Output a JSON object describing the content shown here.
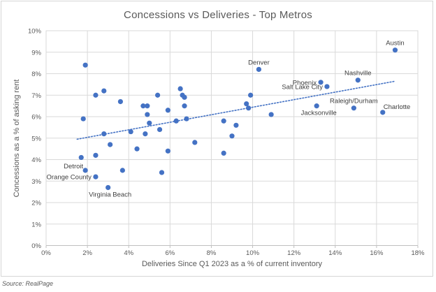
{
  "source_note": "Source: RealPage",
  "colors": {
    "marker": "#4472C4",
    "trendline": "#4472C4",
    "gridline": "#D9D9D9",
    "axis_line": "#BFBFBF",
    "title_text": "#595959",
    "label_text": "#404040"
  },
  "chart_data": {
    "type": "scatter",
    "title": "Concessions vs Deliveries - Top Metros",
    "xlabel": "Deliveries Since Q1 2023 as a % of current inventory",
    "ylabel": "Concessions as a % of asking rent",
    "xlim": [
      0,
      18
    ],
    "ylim": [
      0,
      10
    ],
    "grid": true,
    "legend": false,
    "x_ticks": [
      {
        "v": 0,
        "label": "0%"
      },
      {
        "v": 2,
        "label": "2%"
      },
      {
        "v": 4,
        "label": "4%"
      },
      {
        "v": 6,
        "label": "6%"
      },
      {
        "v": 8,
        "label": "8%"
      },
      {
        "v": 10,
        "label": "10%"
      },
      {
        "v": 12,
        "label": "12%"
      },
      {
        "v": 14,
        "label": "14%"
      },
      {
        "v": 16,
        "label": "16%"
      },
      {
        "v": 18,
        "label": "18%"
      }
    ],
    "y_ticks": [
      {
        "v": 0,
        "label": "0%"
      },
      {
        "v": 1,
        "label": "1%"
      },
      {
        "v": 2,
        "label": "2%"
      },
      {
        "v": 3,
        "label": "3%"
      },
      {
        "v": 4,
        "label": "4%"
      },
      {
        "v": 5,
        "label": "5%"
      },
      {
        "v": 6,
        "label": "6%"
      },
      {
        "v": 7,
        "label": "7%"
      },
      {
        "v": 8,
        "label": "8%"
      },
      {
        "v": 9,
        "label": "9%"
      },
      {
        "v": 10,
        "label": "10%"
      }
    ],
    "trendline": {
      "x1": 1.5,
      "y1": 4.95,
      "x2": 16.9,
      "y2": 7.65,
      "style": "dotted"
    },
    "points": [
      {
        "x": 1.9,
        "y": 8.4
      },
      {
        "x": 1.8,
        "y": 5.9
      },
      {
        "x": 1.7,
        "y": 4.1
      },
      {
        "x": 2.4,
        "y": 7.0
      },
      {
        "x": 2.8,
        "y": 7.2
      },
      {
        "x": 2.8,
        "y": 5.2
      },
      {
        "x": 2.4,
        "y": 4.2
      },
      {
        "x": 3.1,
        "y": 4.7
      },
      {
        "x": 3.6,
        "y": 6.7
      },
      {
        "x": 3.7,
        "y": 3.5
      },
      {
        "x": 4.1,
        "y": 5.3
      },
      {
        "x": 4.4,
        "y": 4.5
      },
      {
        "x": 4.7,
        "y": 6.5
      },
      {
        "x": 4.9,
        "y": 6.5
      },
      {
        "x": 4.9,
        "y": 6.1
      },
      {
        "x": 4.8,
        "y": 5.2
      },
      {
        "x": 5.0,
        "y": 5.7
      },
      {
        "x": 5.4,
        "y": 7.0
      },
      {
        "x": 5.5,
        "y": 5.4
      },
      {
        "x": 5.6,
        "y": 3.4
      },
      {
        "x": 5.9,
        "y": 6.3
      },
      {
        "x": 5.9,
        "y": 4.4
      },
      {
        "x": 6.3,
        "y": 5.8
      },
      {
        "x": 6.5,
        "y": 7.3
      },
      {
        "x": 6.6,
        "y": 7.0
      },
      {
        "x": 6.7,
        "y": 6.9
      },
      {
        "x": 6.7,
        "y": 6.5
      },
      {
        "x": 6.8,
        "y": 5.9
      },
      {
        "x": 7.2,
        "y": 4.8
      },
      {
        "x": 8.6,
        "y": 5.8
      },
      {
        "x": 8.6,
        "y": 4.3
      },
      {
        "x": 9.0,
        "y": 5.1
      },
      {
        "x": 9.2,
        "y": 5.6
      },
      {
        "x": 9.7,
        "y": 6.6
      },
      {
        "x": 9.8,
        "y": 6.4
      },
      {
        "x": 9.9,
        "y": 7.0
      },
      {
        "x": 10.9,
        "y": 6.1
      },
      {
        "x": 1.9,
        "y": 3.5,
        "label": "Detroit",
        "label_pos": "above-left"
      },
      {
        "x": 2.4,
        "y": 3.2,
        "label": "Orange County",
        "label_pos": "left"
      },
      {
        "x": 3.0,
        "y": 2.7,
        "label": "Virginia Beach",
        "label_pos": "below"
      },
      {
        "x": 10.3,
        "y": 8.2,
        "label": "Denver",
        "label_pos": "above"
      },
      {
        "x": 13.1,
        "y": 6.5,
        "label": "Jacksonville",
        "label_pos": "below"
      },
      {
        "x": 13.3,
        "y": 7.6,
        "label": "Phoenix",
        "label_pos": "left"
      },
      {
        "x": 13.6,
        "y": 7.4,
        "label": "Salt Lake City",
        "label_pos": "left"
      },
      {
        "x": 14.9,
        "y": 6.4,
        "label": "Raleigh/Durham",
        "label_pos": "above"
      },
      {
        "x": 15.1,
        "y": 7.7,
        "label": "Nashville",
        "label_pos": "above"
      },
      {
        "x": 16.3,
        "y": 6.2,
        "label": "Charlotte",
        "label_pos": "above-right"
      },
      {
        "x": 16.9,
        "y": 9.1,
        "label": "Austin",
        "label_pos": "above"
      }
    ]
  }
}
